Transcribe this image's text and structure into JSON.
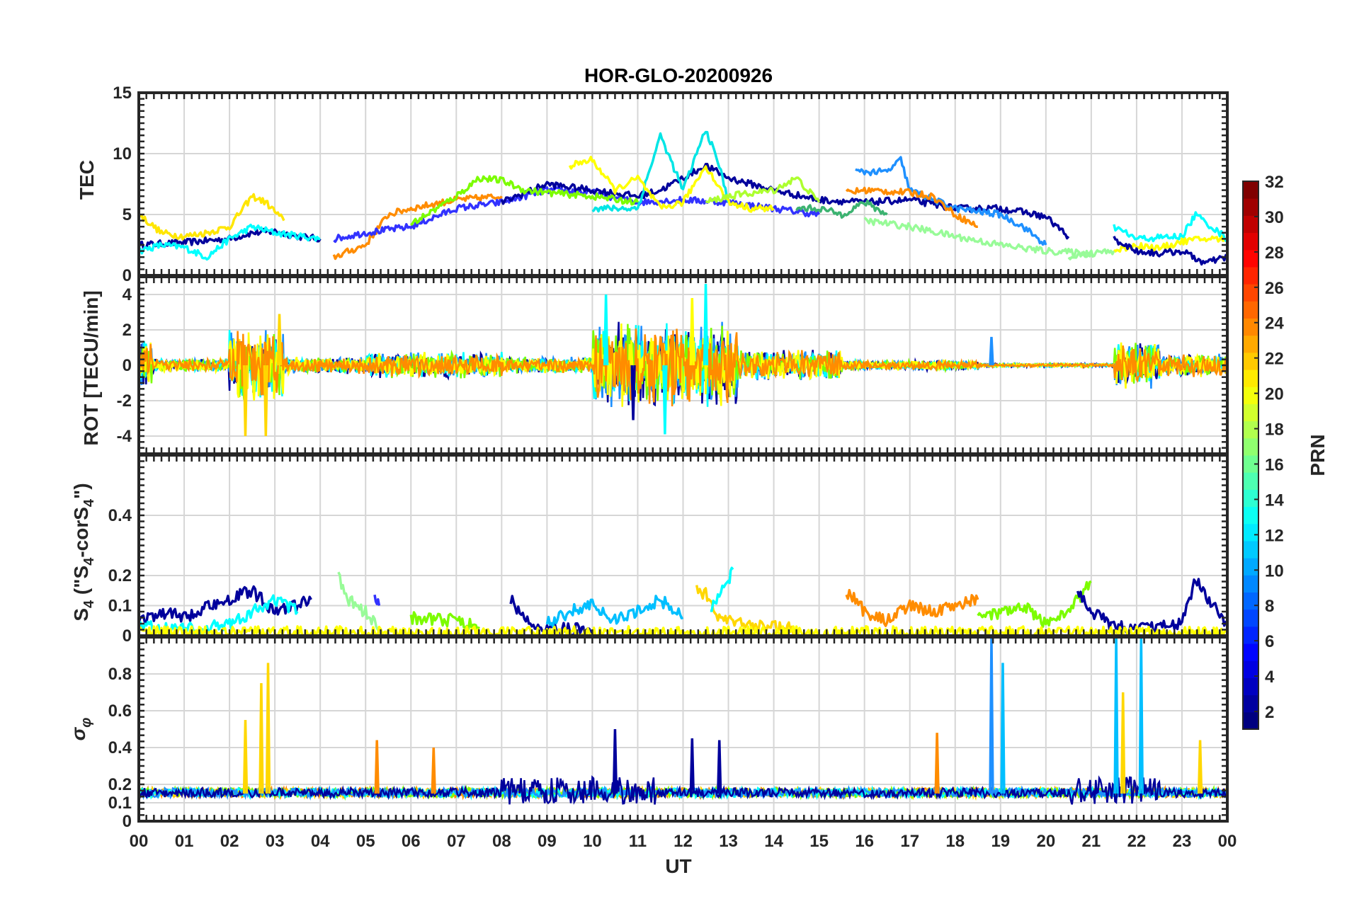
{
  "figure": {
    "title": "HOR-GLO-20200926"
  },
  "chart_data": [
    {
      "type": "line",
      "panel": "tec",
      "ylabel": "TEC",
      "ylim": [
        0,
        15
      ],
      "yticks": [
        0,
        5,
        10,
        15
      ],
      "xlim": [
        0,
        24
      ],
      "grid": true,
      "series": [
        {
          "color": "#00009c",
          "x": [
            0,
            1,
            2,
            2.5,
            3,
            3.5,
            4
          ],
          "y": [
            2.5,
            2.7,
            3,
            3.5,
            3.6,
            3.2,
            3
          ]
        },
        {
          "color": "#00ffff",
          "x": [
            0,
            0.5,
            1,
            1.5,
            2,
            2.5,
            3,
            4
          ],
          "y": [
            2,
            2.5,
            2.3,
            1.5,
            3,
            4,
            3.5,
            3
          ]
        },
        {
          "color": "#ffe600",
          "x": [
            0,
            0.5,
            1,
            1.5,
            2,
            2.5,
            2.8,
            3.2
          ],
          "y": [
            5,
            3.5,
            3.2,
            3.5,
            4,
            6.5,
            6,
            4.5
          ]
        },
        {
          "color": "#ff8c00",
          "x": [
            4.3,
            5,
            5.5,
            6,
            7,
            8
          ],
          "y": [
            1.5,
            2.5,
            5,
            5.5,
            6.2,
            6.5
          ]
        },
        {
          "color": "#3232ff",
          "x": [
            4.3,
            5,
            6,
            7,
            8,
            9,
            10,
            11,
            12,
            13,
            14,
            15
          ],
          "y": [
            3,
            3.5,
            4,
            5.5,
            6,
            7,
            6.8,
            6,
            6.2,
            6,
            5.5,
            5
          ]
        },
        {
          "color": "#00009c",
          "x": [
            8,
            9,
            10,
            11,
            11.5,
            12,
            12.5,
            13,
            14,
            15,
            16,
            17,
            18,
            19,
            19.5,
            20,
            20.5
          ],
          "y": [
            6,
            7.5,
            7,
            6.5,
            7,
            8,
            9,
            8,
            7,
            6.2,
            6,
            6.2,
            5.5,
            5.5,
            5.2,
            4.8,
            3.2
          ]
        },
        {
          "color": "#1e90ff",
          "x": [
            15.8,
            16,
            16.5,
            16.8,
            17,
            18,
            19,
            19.5,
            20
          ],
          "y": [
            8.5,
            8.5,
            8.5,
            9.5,
            7,
            5.5,
            5,
            4,
            2.5
          ]
        },
        {
          "color": "#ff8c00",
          "x": [
            15.6,
            16,
            17,
            17.5,
            18,
            18.5
          ],
          "y": [
            6.8,
            7,
            6.8,
            6.5,
            5,
            4
          ]
        },
        {
          "color": "#7cfc00",
          "x": [
            6,
            7,
            7.5,
            8,
            8.5,
            9,
            10,
            11
          ],
          "y": [
            4.2,
            6.5,
            8,
            7.8,
            7,
            6.8,
            6.5,
            6
          ]
        },
        {
          "color": "#98fb98",
          "x": [
            16,
            17,
            18,
            19,
            20,
            21
          ],
          "y": [
            4.5,
            4,
            3.2,
            2.5,
            2,
            1.8
          ]
        },
        {
          "color": "#00e5e5",
          "x": [
            10,
            11,
            11.5,
            12,
            12.5,
            12.8,
            13
          ],
          "y": [
            5.5,
            5.5,
            11.5,
            7,
            12,
            9,
            6
          ]
        },
        {
          "color": "#ffff00",
          "x": [
            9.5,
            10,
            10.5,
            11,
            11.5,
            12,
            12.5,
            13,
            13.5,
            14
          ],
          "y": [
            9,
            9.5,
            7,
            8,
            5.5,
            6,
            9,
            6,
            5.5,
            5.5
          ]
        },
        {
          "color": "#adff2f",
          "x": [
            12.5,
            13,
            14,
            14.5,
            15
          ],
          "y": [
            6,
            6.5,
            7,
            8,
            6
          ]
        },
        {
          "color": "#3cb371",
          "x": [
            14.5,
            15,
            15.5,
            16,
            16.5
          ],
          "y": [
            5.5,
            5.5,
            5,
            6,
            5
          ]
        },
        {
          "color": "#ffff00",
          "x": [
            21.5,
            22,
            22.5,
            23,
            23.5,
            24
          ],
          "y": [
            2,
            2.5,
            2.2,
            2.8,
            3,
            3
          ]
        },
        {
          "color": "#00009c",
          "x": [
            21.5,
            22,
            22.5,
            23,
            23.5,
            24
          ],
          "y": [
            3,
            2,
            1.8,
            2,
            1,
            1.5
          ]
        },
        {
          "color": "#00ffff",
          "x": [
            21.5,
            22,
            23,
            23.3,
            24
          ],
          "y": [
            4,
            3,
            3.2,
            5,
            3
          ]
        },
        {
          "color": "#98fb98",
          "x": [
            20.5,
            21,
            21.5
          ],
          "y": [
            1.5,
            1.8,
            2
          ]
        }
      ]
    },
    {
      "type": "line",
      "panel": "rot",
      "ylabel": "ROT [TECU/min]",
      "ylim": [
        -5,
        5
      ],
      "yticks": [
        -4,
        -2,
        0,
        2,
        4
      ],
      "xlim": [
        0,
        24
      ],
      "grid": true,
      "noise_model": [
        {
          "from": 0,
          "to": 0.3,
          "amp": 1.5
        },
        {
          "from": 0.3,
          "to": 2,
          "amp": 0.4
        },
        {
          "from": 2,
          "to": 3.2,
          "amp": 2.2
        },
        {
          "from": 3.2,
          "to": 5,
          "amp": 0.5
        },
        {
          "from": 5,
          "to": 8,
          "amp": 0.8
        },
        {
          "from": 8,
          "to": 10,
          "amp": 0.5
        },
        {
          "from": 10,
          "to": 13.2,
          "amp": 2.5
        },
        {
          "from": 13.2,
          "to": 15.5,
          "amp": 0.9
        },
        {
          "from": 15.5,
          "to": 18.5,
          "amp": 0.3
        },
        {
          "from": 18.5,
          "to": 21.5,
          "amp": 0.1
        },
        {
          "from": 21.5,
          "to": 22.5,
          "amp": 1.4
        },
        {
          "from": 22.5,
          "to": 24,
          "amp": 0.7
        }
      ],
      "series_colors": [
        "#00009c",
        "#1e90ff",
        "#00ffff",
        "#7cfc00",
        "#ffff00",
        "#ff8c00"
      ],
      "spikes": [
        {
          "x": 2.35,
          "y": -4,
          "color": "#ffd700"
        },
        {
          "x": 2.8,
          "y": -4,
          "color": "#ffd700"
        },
        {
          "x": 3.1,
          "y": 2.9,
          "color": "#ffd700"
        },
        {
          "x": 10.3,
          "y": 4,
          "color": "#00ffff"
        },
        {
          "x": 11.6,
          "y": -3.9,
          "color": "#00ffff"
        },
        {
          "x": 12.2,
          "y": 3.8,
          "color": "#ffff00"
        },
        {
          "x": 12.5,
          "y": 4.6,
          "color": "#00ffff"
        },
        {
          "x": 10.9,
          "y": -3.1,
          "color": "#00009c"
        },
        {
          "x": 18.8,
          "y": 1.6,
          "color": "#1e90ff"
        }
      ]
    },
    {
      "type": "line",
      "panel": "s4",
      "ylabel": "S4 (\"S4-corS4\")",
      "ylim": [
        0,
        0.6
      ],
      "yticks": [
        0,
        0.1,
        0.2,
        0.4
      ],
      "xlim": [
        0,
        24
      ],
      "grid": true,
      "series": [
        {
          "color": "#00009c",
          "x": [
            0,
            0.5,
            1,
            1.5,
            2,
            2.5,
            3,
            3.5,
            3.8
          ],
          "y": [
            0.05,
            0.08,
            0.06,
            0.1,
            0.12,
            0.15,
            0.08,
            0.1,
            0.12
          ]
        },
        {
          "color": "#00ffff",
          "x": [
            0,
            1,
            2,
            3,
            3.5
          ],
          "y": [
            0.03,
            0.02,
            0.04,
            0.12,
            0.08
          ]
        },
        {
          "color": "#98fb98",
          "x": [
            4.4,
            4.6,
            5,
            5.3
          ],
          "y": [
            0.2,
            0.12,
            0.08,
            0.02
          ]
        },
        {
          "color": "#3232ff",
          "x": [
            5.2,
            5.3
          ],
          "y": [
            0.12,
            0.1
          ]
        },
        {
          "color": "#7cfc00",
          "x": [
            6,
            7,
            7.5
          ],
          "y": [
            0.06,
            0.05,
            0.03
          ]
        },
        {
          "color": "#00009c",
          "x": [
            8.2,
            8.5,
            9,
            9.5,
            10
          ],
          "y": [
            0.12,
            0.05,
            0.03,
            0.02,
            0.02
          ]
        },
        {
          "color": "#00bfff",
          "x": [
            9,
            9.5,
            10,
            10.5,
            11,
            11.5,
            12
          ],
          "y": [
            0.04,
            0.08,
            0.1,
            0.05,
            0.08,
            0.12,
            0.06
          ]
        },
        {
          "color": "#ffd700",
          "x": [
            12.3,
            12.5,
            12.8,
            13.2,
            14,
            14.5
          ],
          "y": [
            0.15,
            0.14,
            0.06,
            0.04,
            0.03,
            0.02
          ]
        },
        {
          "color": "#00ffff",
          "x": [
            12.6,
            13,
            13.1
          ],
          "y": [
            0.08,
            0.18,
            0.22
          ]
        },
        {
          "color": "#ff8c00",
          "x": [
            15.6,
            16,
            16.5,
            17,
            17.5,
            18,
            18.5
          ],
          "y": [
            0.15,
            0.08,
            0.05,
            0.1,
            0.08,
            0.1,
            0.12
          ]
        },
        {
          "color": "#7cfc00",
          "x": [
            18.5,
            19,
            19.5,
            20,
            20.5,
            21
          ],
          "y": [
            0.08,
            0.07,
            0.1,
            0.04,
            0.08,
            0.18
          ]
        },
        {
          "color": "#00009c",
          "x": [
            20.7,
            21,
            21.5,
            22,
            22.5,
            23,
            23.3,
            23.6,
            24
          ],
          "y": [
            0.14,
            0.08,
            0.03,
            0.02,
            0.03,
            0.04,
            0.19,
            0.12,
            0.04
          ]
        },
        {
          "color": "#ffff00",
          "x": [
            0,
            8,
            16,
            24
          ],
          "y": [
            0.01,
            0.01,
            0.01,
            0.01
          ]
        }
      ]
    },
    {
      "type": "line",
      "panel": "sigma",
      "ylabel": "σφ",
      "ylim": [
        0,
        1
      ],
      "yticks": [
        0,
        0.1,
        0.2,
        0.4,
        0.6,
        0.8
      ],
      "xlim": [
        0,
        24
      ],
      "xticklabels": [
        "00",
        "01",
        "02",
        "03",
        "04",
        "05",
        "06",
        "07",
        "08",
        "09",
        "10",
        "11",
        "12",
        "13",
        "14",
        "15",
        "16",
        "17",
        "18",
        "19",
        "20",
        "21",
        "22",
        "23",
        "00"
      ],
      "xlabel": "UT",
      "grid": true,
      "baseline": 0.15,
      "series_colors": [
        "#ff8c00",
        "#ffd700",
        "#7cfc00",
        "#00ffff",
        "#1e90ff",
        "#00009c"
      ],
      "spikes": [
        {
          "x": 2.35,
          "y": 0.55,
          "color": "#ffd700"
        },
        {
          "x": 2.7,
          "y": 0.75,
          "color": "#ffd700"
        },
        {
          "x": 2.85,
          "y": 0.86,
          "color": "#ffd700"
        },
        {
          "x": 5.25,
          "y": 0.44,
          "color": "#ff8c00"
        },
        {
          "x": 6.5,
          "y": 0.4,
          "color": "#ff8c00"
        },
        {
          "x": 10.5,
          "y": 0.5,
          "color": "#00009c"
        },
        {
          "x": 12.2,
          "y": 0.45,
          "color": "#00009c"
        },
        {
          "x": 12.8,
          "y": 0.44,
          "color": "#00009c"
        },
        {
          "x": 18.8,
          "y": 1.0,
          "color": "#1e90ff"
        },
        {
          "x": 19.05,
          "y": 0.86,
          "color": "#00bfff"
        },
        {
          "x": 21.55,
          "y": 1.0,
          "color": "#00bfff"
        },
        {
          "x": 21.7,
          "y": 0.7,
          "color": "#ffd700"
        },
        {
          "x": 22.1,
          "y": 1.0,
          "color": "#00bfff"
        },
        {
          "x": 23.4,
          "y": 0.44,
          "color": "#ffd700"
        },
        {
          "x": 17.6,
          "y": 0.48,
          "color": "#ff8c00"
        }
      ]
    }
  ],
  "colorbar": {
    "label": "PRN",
    "range": [
      1,
      32
    ],
    "ticks": [
      2,
      4,
      6,
      8,
      10,
      12,
      14,
      16,
      18,
      20,
      22,
      24,
      26,
      28,
      30,
      32
    ],
    "colormap": "jet"
  }
}
